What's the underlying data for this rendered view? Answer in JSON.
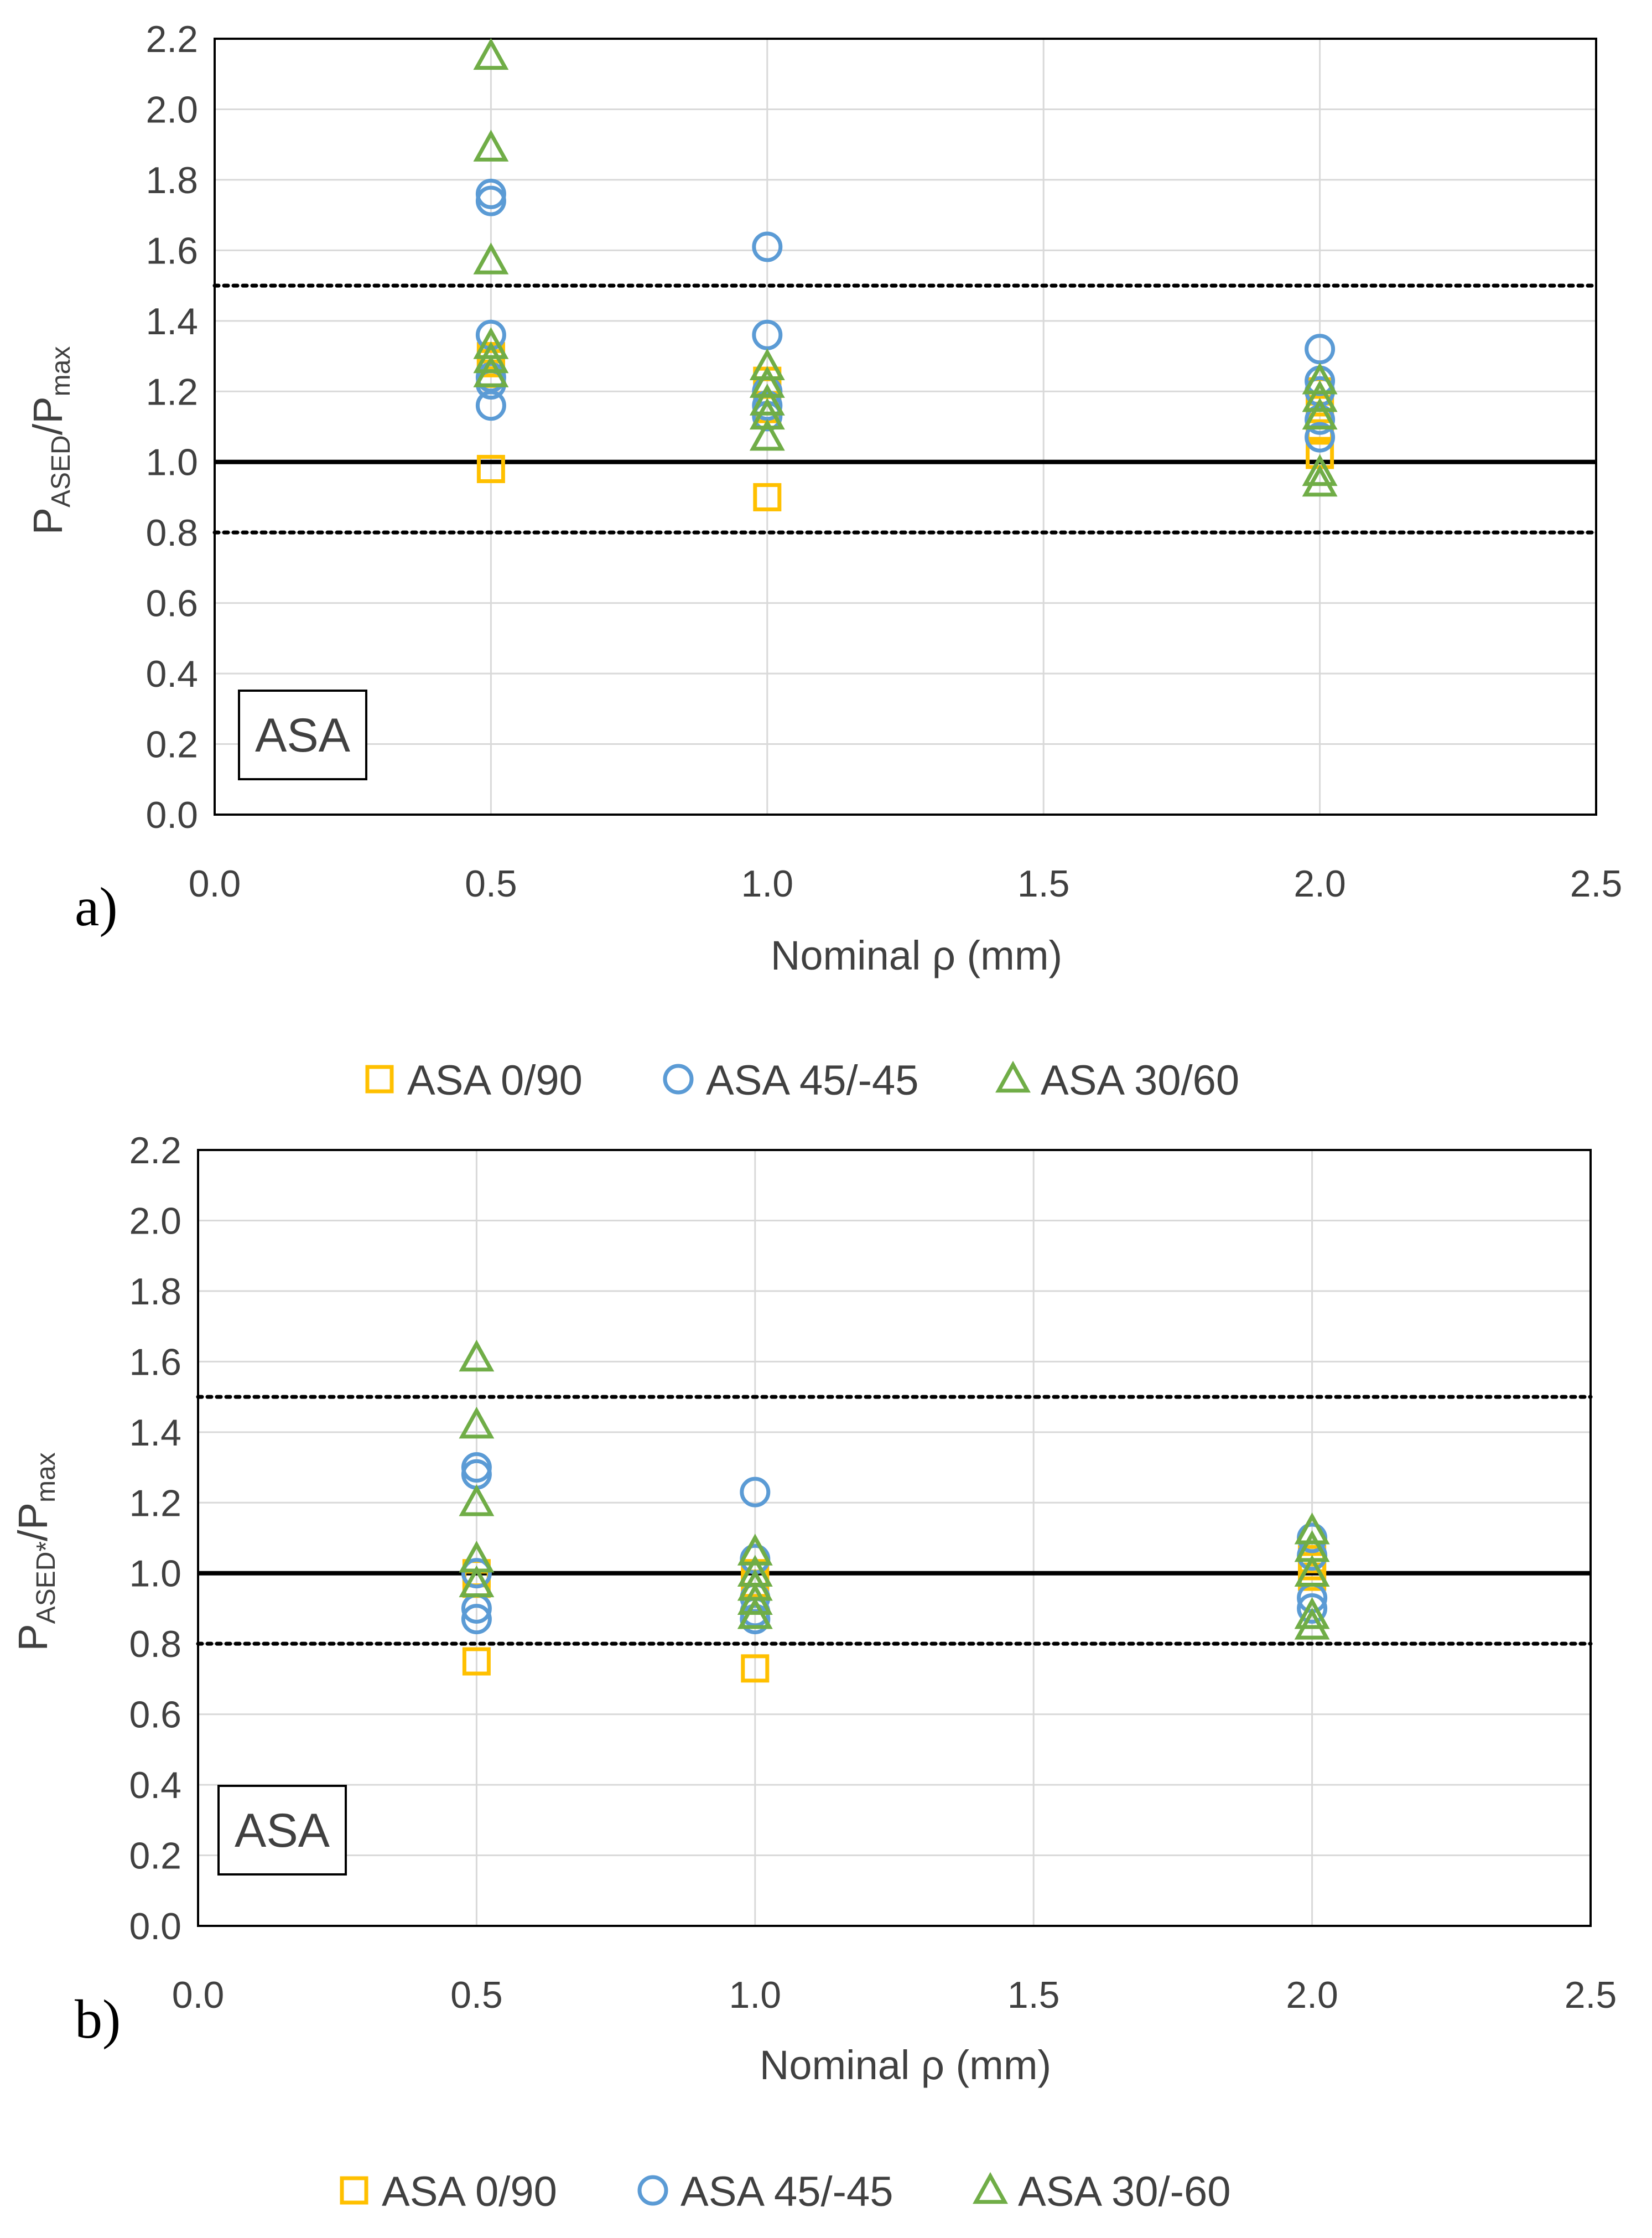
{
  "colors": {
    "square": "#FFC000",
    "circle": "#5B9BD5",
    "triangle": "#70AD47",
    "grid": "#D9D9D9",
    "text": "#404040"
  },
  "chart_data": [
    {
      "panel_label": "a)",
      "type": "scatter",
      "inset_label": "ASA",
      "xlabel": "Nominal ρ (mm)",
      "ylabel": {
        "main": "P",
        "sub1": "ASED",
        "mid": "/P",
        "sub2": "max"
      },
      "xlim": [
        0,
        2.5
      ],
      "ylim": [
        0,
        2.2
      ],
      "xticks": [
        "0.0",
        "0.5",
        "1.0",
        "1.5",
        "2.0",
        "2.5"
      ],
      "yticks": [
        "0.0",
        "0.2",
        "0.4",
        "0.6",
        "0.8",
        "1.0",
        "1.2",
        "1.4",
        "1.6",
        "1.8",
        "2.0",
        "2.2"
      ],
      "reference_lines": [
        {
          "y": 1.0,
          "style": "solid"
        },
        {
          "y": 1.5,
          "style": "dotted"
        },
        {
          "y": 0.8,
          "style": "dotted"
        }
      ],
      "legend": [
        "ASA 0/90",
        "ASA 45/-45",
        "ASA 30/60"
      ],
      "series": [
        {
          "name": "ASA 0/90",
          "marker": "square",
          "points": [
            [
              0.5,
              0.98
            ],
            [
              0.5,
              1.25
            ],
            [
              0.5,
              1.28
            ],
            [
              0.5,
              1.3
            ],
            [
              1.0,
              0.9
            ],
            [
              1.0,
              1.2
            ],
            [
              1.0,
              1.23
            ],
            [
              1.0,
              1.15
            ],
            [
              2.0,
              1.02
            ],
            [
              2.0,
              1.1
            ],
            [
              2.0,
              1.15
            ],
            [
              2.0,
              1.2
            ]
          ]
        },
        {
          "name": "ASA 45/-45",
          "marker": "circle",
          "points": [
            [
              0.5,
              1.76
            ],
            [
              0.5,
              1.74
            ],
            [
              0.5,
              1.36
            ],
            [
              0.5,
              1.24
            ],
            [
              0.5,
              1.22
            ],
            [
              0.5,
              1.16
            ],
            [
              1.0,
              1.61
            ],
            [
              1.0,
              1.36
            ],
            [
              1.0,
              1.2
            ],
            [
              1.0,
              1.16
            ],
            [
              1.0,
              1.13
            ],
            [
              2.0,
              1.32
            ],
            [
              2.0,
              1.23
            ],
            [
              2.0,
              1.2
            ],
            [
              2.0,
              1.12
            ],
            [
              2.0,
              1.07
            ]
          ]
        },
        {
          "name": "ASA 30/60",
          "marker": "triangle",
          "points": [
            [
              0.5,
              2.15
            ],
            [
              0.5,
              1.89
            ],
            [
              0.5,
              1.57
            ],
            [
              0.5,
              1.33
            ],
            [
              0.5,
              1.29
            ],
            [
              0.5,
              1.25
            ],
            [
              1.0,
              1.27
            ],
            [
              1.0,
              1.22
            ],
            [
              1.0,
              1.17
            ],
            [
              1.0,
              1.13
            ],
            [
              1.0,
              1.07
            ],
            [
              2.0,
              1.23
            ],
            [
              2.0,
              1.18
            ],
            [
              2.0,
              1.13
            ],
            [
              2.0,
              0.97
            ],
            [
              2.0,
              0.94
            ]
          ]
        }
      ]
    },
    {
      "panel_label": "b)",
      "type": "scatter",
      "inset_label": "ASA",
      "xlabel": "Nominal ρ (mm)",
      "ylabel": {
        "main": "P",
        "sub1": "ASED*",
        "mid": "/P",
        "sub2": "max"
      },
      "xlim": [
        0,
        2.5
      ],
      "ylim": [
        0,
        2.2
      ],
      "xticks": [
        "0.0",
        "0.5",
        "1.0",
        "1.5",
        "2.0",
        "2.5"
      ],
      "yticks": [
        "0.0",
        "0.2",
        "0.4",
        "0.6",
        "0.8",
        "1.0",
        "1.2",
        "1.4",
        "1.6",
        "1.8",
        "2.0",
        "2.2"
      ],
      "reference_lines": [
        {
          "y": 1.0,
          "style": "solid"
        },
        {
          "y": 1.5,
          "style": "dotted"
        },
        {
          "y": 0.8,
          "style": "dotted"
        }
      ],
      "legend": [
        "ASA 0/90",
        "ASA 45/-45",
        "ASA 30/-60"
      ],
      "series": [
        {
          "name": "ASA 0/90",
          "marker": "square",
          "points": [
            [
              0.5,
              0.75
            ],
            [
              0.5,
              0.97
            ],
            [
              0.5,
              1.0
            ],
            [
              1.0,
              0.73
            ],
            [
              1.0,
              0.97
            ],
            [
              1.0,
              1.0
            ],
            [
              2.0,
              0.99
            ],
            [
              2.0,
              1.02
            ],
            [
              2.0,
              1.04
            ]
          ]
        },
        {
          "name": "ASA 45/-45",
          "marker": "circle",
          "points": [
            [
              0.5,
              1.3
            ],
            [
              0.5,
              1.28
            ],
            [
              0.5,
              1.0
            ],
            [
              0.5,
              0.9
            ],
            [
              0.5,
              0.87
            ],
            [
              1.0,
              1.23
            ],
            [
              1.0,
              1.04
            ],
            [
              1.0,
              0.93
            ],
            [
              1.0,
              0.89
            ],
            [
              1.0,
              0.87
            ],
            [
              2.0,
              1.1
            ],
            [
              2.0,
              1.05
            ],
            [
              2.0,
              0.93
            ],
            [
              2.0,
              0.9
            ]
          ]
        },
        {
          "name": "ASA 30/-60",
          "marker": "triangle",
          "points": [
            [
              0.5,
              1.61
            ],
            [
              0.5,
              1.42
            ],
            [
              0.5,
              1.2
            ],
            [
              0.5,
              1.04
            ],
            [
              0.5,
              0.97
            ],
            [
              1.0,
              1.06
            ],
            [
              1.0,
              1.0
            ],
            [
              1.0,
              0.96
            ],
            [
              1.0,
              0.92
            ],
            [
              1.0,
              0.88
            ],
            [
              2.0,
              1.12
            ],
            [
              2.0,
              1.07
            ],
            [
              2.0,
              1.0
            ],
            [
              2.0,
              0.88
            ],
            [
              2.0,
              0.85
            ]
          ]
        }
      ]
    }
  ]
}
